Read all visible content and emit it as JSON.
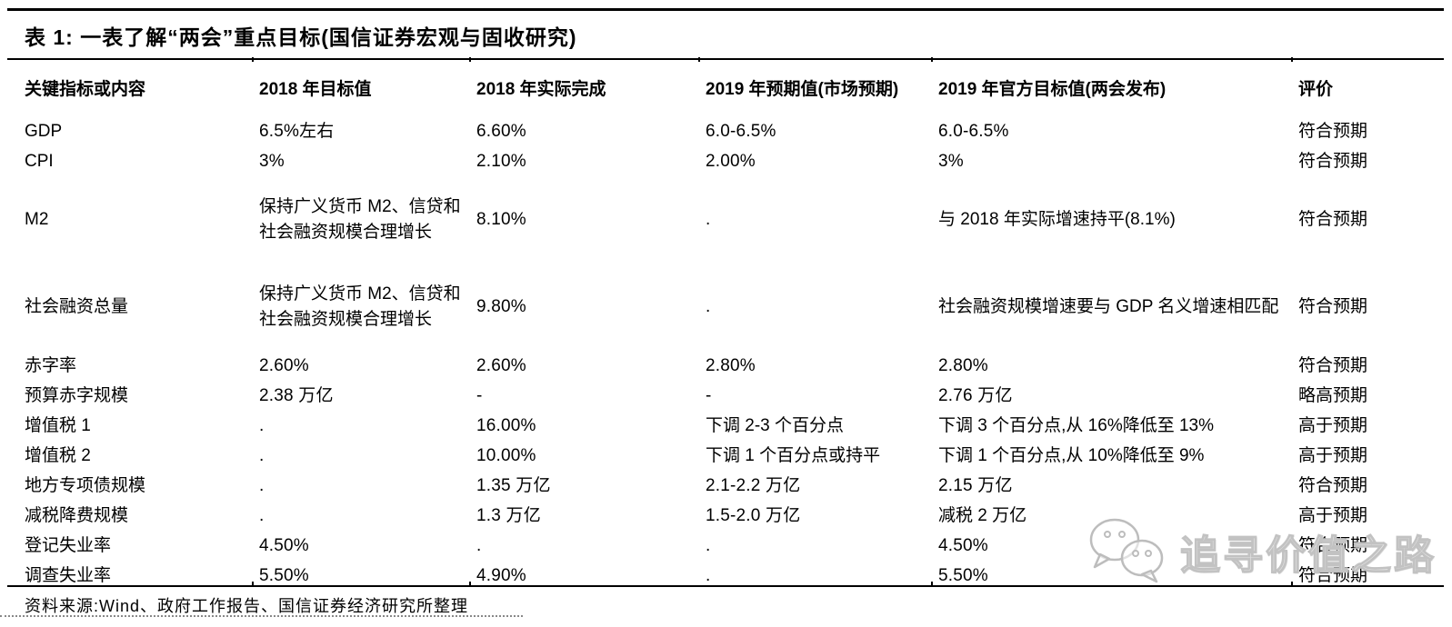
{
  "table": {
    "title": "表 1: 一表了解“两会”重点目标(国信证券宏观与固收研究)",
    "columns": [
      "关键指标或内容",
      "2018 年目标值",
      "2018 年实际完成",
      "2019 年预期值(市场预期)",
      "2019 年官方目标值(两会发布)",
      "评价"
    ],
    "rows": [
      {
        "indicator": "GDP",
        "target2018": "6.5%左右",
        "actual2018": "6.60%",
        "expected2019": "6.0-6.5%",
        "official2019": "6.0-6.5%",
        "evaluation": "符合预期",
        "tall": false
      },
      {
        "indicator": "CPI",
        "target2018": "3%",
        "actual2018": "2.10%",
        "expected2019": "2.00%",
        "official2019": "3%",
        "evaluation": "符合预期",
        "tall": false
      },
      {
        "indicator": "M2",
        "target2018": "保持广义货币 M2、信贷和社会融资规模合理增长",
        "actual2018": "8.10%",
        "expected2019": ".",
        "official2019": "与 2018 年实际增速持平(8.1%)",
        "evaluation": "符合预期",
        "tall": true
      },
      {
        "indicator": "社会融资总量",
        "target2018": "保持广义货币 M2、信贷和社会融资规模合理增长",
        "actual2018": "9.80%",
        "expected2019": ".",
        "official2019": "社会融资规模增速要与 GDP 名义增速相匹配",
        "evaluation": "符合预期",
        "tall": true
      },
      {
        "indicator": "赤字率",
        "target2018": "2.60%",
        "actual2018": "2.60%",
        "expected2019": "2.80%",
        "official2019": "2.80%",
        "evaluation": "符合预期",
        "tall": false
      },
      {
        "indicator": "预算赤字规模",
        "target2018": "2.38 万亿",
        "actual2018": "-",
        "expected2019": "-",
        "official2019": "2.76 万亿",
        "evaluation": "略高预期",
        "tall": false
      },
      {
        "indicator": "增值税 1",
        "target2018": ".",
        "actual2018": "16.00%",
        "expected2019": "下调 2-3 个百分点",
        "official2019": "下调 3 个百分点,从 16%降低至 13%",
        "evaluation": "高于预期",
        "tall": false
      },
      {
        "indicator": "增值税 2",
        "target2018": ".",
        "actual2018": "10.00%",
        "expected2019": "下调 1 个百分点或持平",
        "official2019": "下调 1 个百分点,从 10%降低至 9%",
        "evaluation": "高于预期",
        "tall": false
      },
      {
        "indicator": "地方专项债规模",
        "target2018": ".",
        "actual2018": "1.35 万亿",
        "expected2019": "2.1-2.2 万亿",
        "official2019": "2.15 万亿",
        "evaluation": "符合预期",
        "tall": false
      },
      {
        "indicator": "减税降费规模",
        "target2018": ".",
        "actual2018": "1.3 万亿",
        "expected2019": "1.5-2.0 万亿",
        "official2019": "减税 2 万亿",
        "evaluation": "高于预期",
        "tall": false
      },
      {
        "indicator": "登记失业率",
        "target2018": "4.50%",
        "actual2018": ".",
        "expected2019": ".",
        "official2019": "4.50%",
        "evaluation": "符合预期",
        "tall": false
      },
      {
        "indicator": "调查失业率",
        "target2018": "5.50%",
        "actual2018": "4.90%",
        "expected2019": ".",
        "official2019": "5.50%",
        "evaluation": "符合预期",
        "tall": false
      }
    ]
  },
  "footer": {
    "source": "资料来源:Wind、政府工作报告、国信证券经济研究所整理"
  },
  "watermark": {
    "icon": "wechat-icon",
    "text": "追寻价值之路",
    "color": "#c2c2c2"
  }
}
